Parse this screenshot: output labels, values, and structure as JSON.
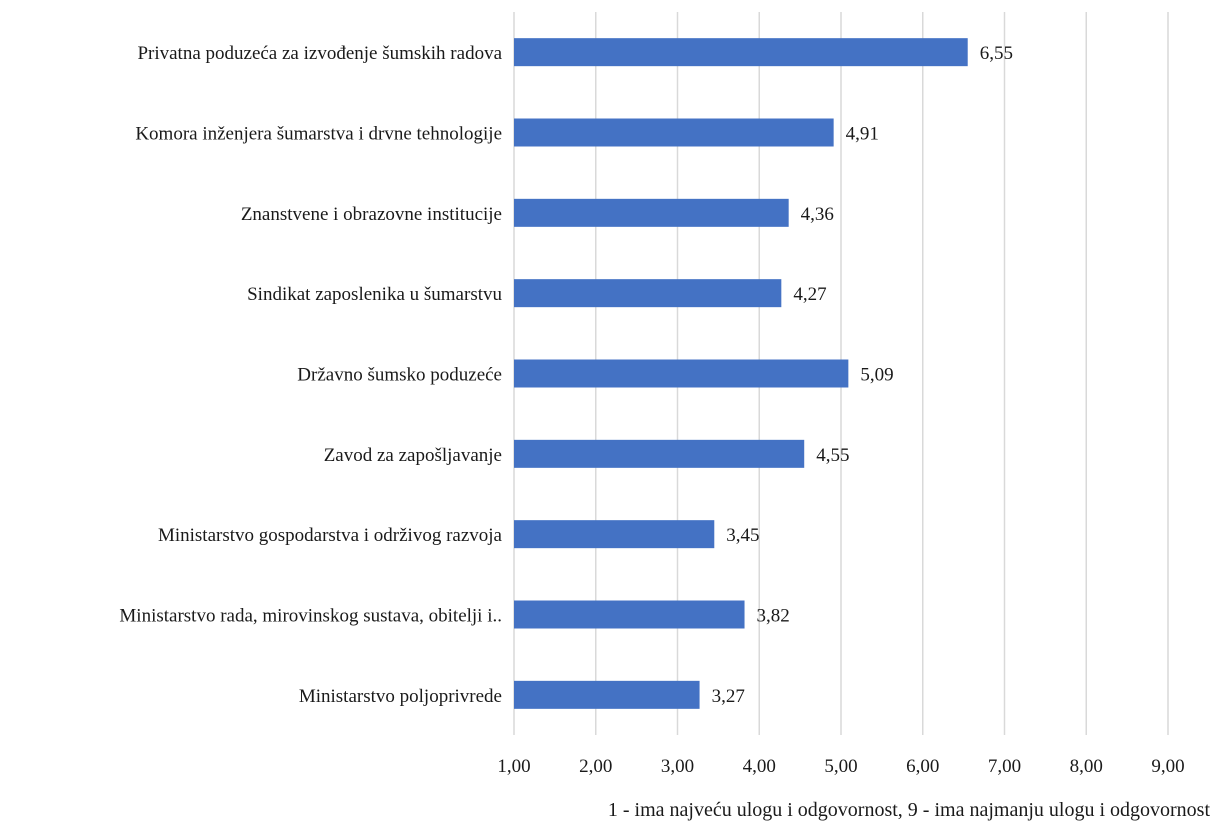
{
  "chart_data": {
    "type": "bar",
    "orientation": "horizontal",
    "categories": [
      "Privatna poduzeća za izvođenje šumskih radova",
      "Komora inženjera šumarstva i drvne tehnologije",
      "Znanstvene i obrazovne institucije",
      "Sindikat zaposlenika u šumarstvu",
      "Državno šumsko poduzeće",
      "Zavod za zapošljavanje",
      "Ministarstvo gospodarstva i održivog razvoja",
      "Ministarstvo rada, mirovinskog sustava, obitelji i..",
      "Ministarstvo poljoprivrede"
    ],
    "values": [
      6.55,
      4.91,
      4.36,
      4.27,
      5.09,
      4.55,
      3.45,
      3.82,
      3.27
    ],
    "value_labels": [
      "6,55",
      "4,91",
      "4,36",
      "4,27",
      "5,09",
      "4,55",
      "3,45",
      "3,82",
      "3,27"
    ],
    "xlim": [
      1,
      9
    ],
    "xticks": [
      1,
      2,
      3,
      4,
      5,
      6,
      7,
      8,
      9
    ],
    "xtick_labels": [
      "1,00",
      "2,00",
      "3,00",
      "4,00",
      "5,00",
      "6,00",
      "7,00",
      "8,00",
      "9,00"
    ],
    "xlabel": "1 - ima najveću ulogu i odgovornost, 9 - ima najmanju ulogu i odgovornost",
    "ylabel": "",
    "title": "",
    "grid": "vertical",
    "legend": "none",
    "bar_color": "#4472c4"
  }
}
